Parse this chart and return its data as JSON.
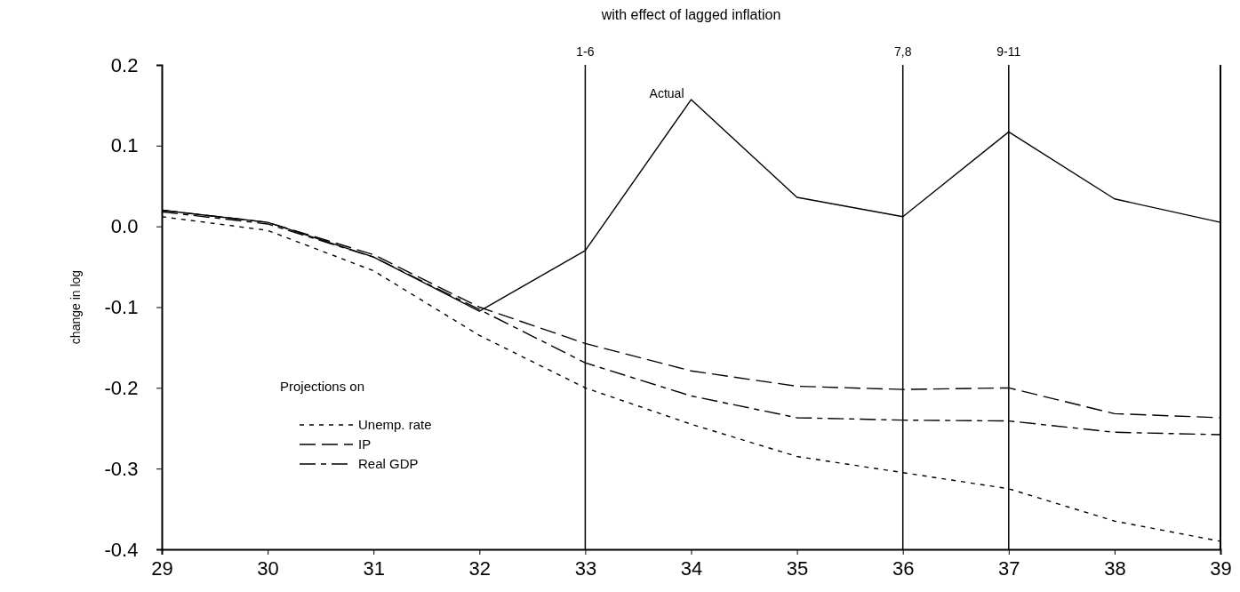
{
  "chart_data": {
    "type": "line",
    "title": "with effect of lagged inflation",
    "ylabel": "change in log",
    "legend_title": "Projections on",
    "x": [
      29,
      30,
      31,
      32,
      33,
      34,
      35,
      36,
      37,
      38,
      39
    ],
    "series": [
      {
        "name": "Actual",
        "color": "#000000",
        "line_style": "solid",
        "values": [
          0.02,
          0.005,
          -0.038,
          -0.105,
          -0.03,
          0.157,
          0.036,
          0.012,
          0.117,
          0.034,
          0.005
        ]
      },
      {
        "name": "Unemp. rate",
        "color": "#000000",
        "line_style": "dashed",
        "values": [
          0.012,
          -0.005,
          -0.055,
          -0.135,
          -0.2,
          -0.245,
          -0.285,
          -0.305,
          -0.325,
          -0.365,
          -0.39
        ]
      },
      {
        "name": "IP",
        "color": "#000000",
        "line_style": "dashed",
        "values": [
          0.02,
          0.005,
          -0.035,
          -0.1,
          -0.145,
          -0.179,
          -0.198,
          -0.202,
          -0.2,
          -0.232,
          -0.237
        ]
      },
      {
        "name": "Real GDP",
        "color": "#000000",
        "line_style": "dashed",
        "values": [
          0.018,
          0.003,
          -0.038,
          -0.103,
          -0.169,
          -0.21,
          -0.237,
          -0.24,
          -0.241,
          -0.255,
          -0.258
        ]
      }
    ],
    "xlim": [
      29,
      39
    ],
    "xticks": [
      29,
      30,
      31,
      32,
      33,
      34,
      35,
      36,
      37,
      38,
      39
    ],
    "ylim": [
      -0.4,
      0.2
    ],
    "yticks": [
      {
        "value": -0.4,
        "label": "-0.4"
      },
      {
        "value": -0.3,
        "label": "-0.3"
      },
      {
        "value": -0.2,
        "label": "-0.2"
      },
      {
        "value": -0.1,
        "label": "-0.1"
      },
      {
        "value": 0,
        "label": "0.0"
      },
      {
        "value": 0.1,
        "label": "0.1"
      },
      {
        "value": 0.2,
        "label": "0.2"
      }
    ],
    "ref_lines": [
      {
        "axis": "x",
        "value": 33
      },
      {
        "axis": "x",
        "value": 36
      },
      {
        "axis": "x",
        "value": 37
      }
    ],
    "annotations": [
      {
        "text": "1-6",
        "x": 33,
        "y": 0.2
      },
      {
        "text": "7,8",
        "x": 36,
        "y": 0.2
      },
      {
        "text": "9-11",
        "x": 37,
        "y": 0.2
      }
    ],
    "grid": false,
    "legend": "bottom left",
    "marker": "none"
  }
}
